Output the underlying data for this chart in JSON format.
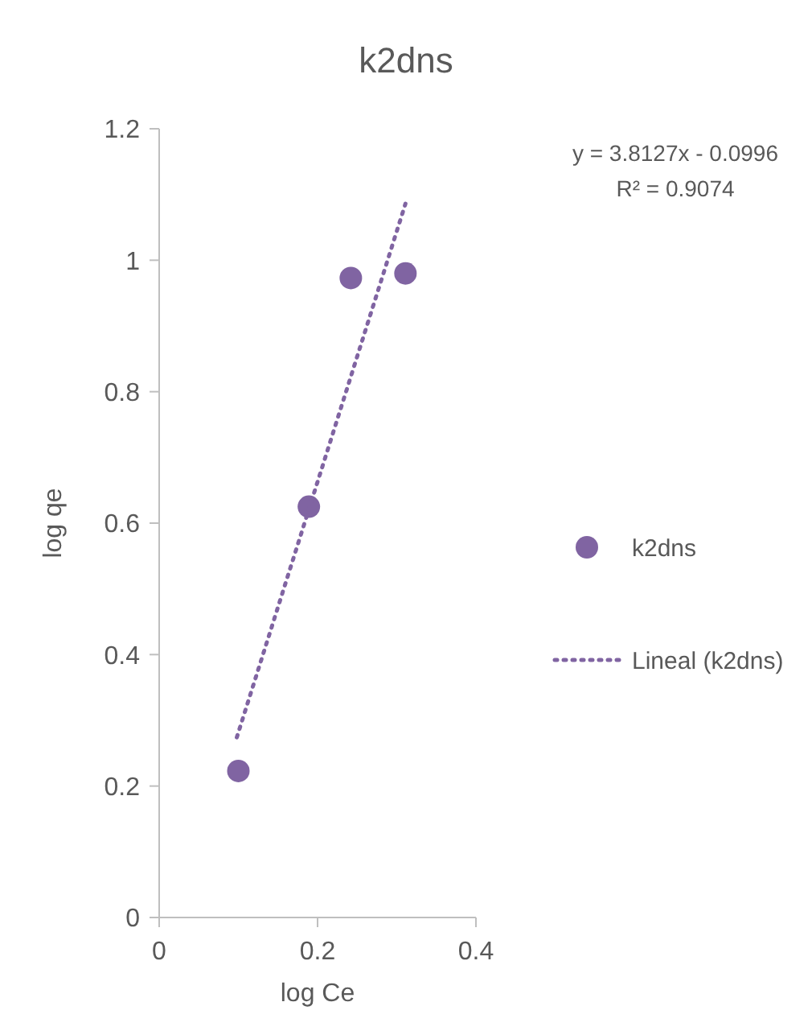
{
  "chart_data": {
    "type": "scatter",
    "title": "k2dns",
    "xlabel": "log Ce",
    "ylabel": "log qe",
    "xlim": [
      0,
      0.4
    ],
    "xticks": [
      0,
      0.2,
      0.4
    ],
    "ylim": [
      0,
      1.2
    ],
    "yticks": [
      0,
      0.2,
      0.4,
      0.6,
      0.8,
      1,
      1.2
    ],
    "grid": false,
    "legend": "right",
    "marker": "circle",
    "annotations": [
      "y = 3.8127x - 0.0996",
      "R² = 0.9074"
    ],
    "series": [
      {
        "name": "k2dns",
        "color": "#8064a2",
        "x": [
          0.1,
          0.189,
          0.242,
          0.311
        ],
        "values": [
          0.223,
          0.625,
          0.973,
          0.98
        ]
      },
      {
        "name": "Lineal (k2dns)",
        "type": "line",
        "line_style": "dotted",
        "marker": "none",
        "color": "#8064a2",
        "x": [
          0.098,
          0.311
        ],
        "values": [
          0.274,
          1.086
        ]
      }
    ]
  }
}
